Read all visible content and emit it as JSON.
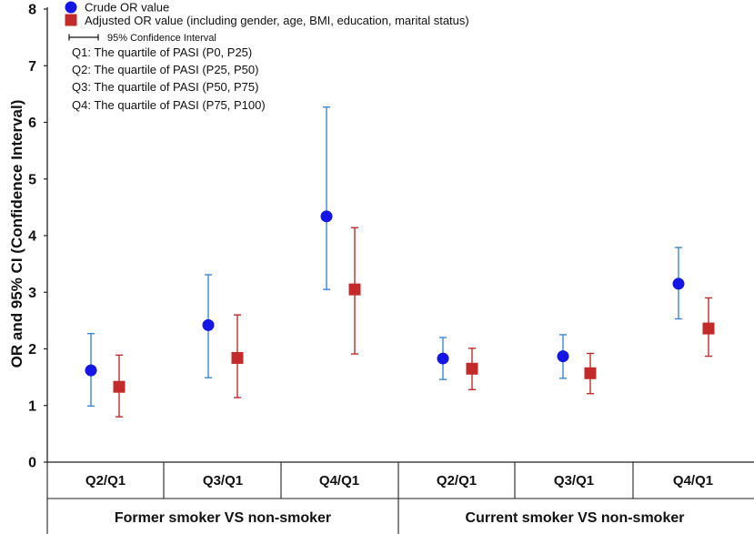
{
  "chart_data": {
    "type": "errorbar",
    "ylabel": "OR and 95% CI (Confidence Interval)",
    "ylim": [
      0,
      8
    ],
    "yticks": [
      "0",
      "1",
      "2",
      "3",
      "4",
      "5",
      "6",
      "7",
      "8"
    ],
    "groups": [
      "Former smoker VS non-smoker",
      "Current smoker VS non-smoker"
    ],
    "categories": [
      "Q2/Q1",
      "Q3/Q1",
      "Q4/Q1",
      "Q2/Q1",
      "Q3/Q1",
      "Q4/Q1"
    ],
    "series": [
      {
        "name": "Crude OR value",
        "marker": "circle",
        "color": "#1515e6",
        "bar_color": "#3d86d6",
        "values": [
          1.62,
          2.42,
          4.34,
          1.83,
          1.87,
          3.15
        ],
        "lower": [
          0.99,
          1.49,
          3.05,
          1.46,
          1.48,
          2.53
        ],
        "upper": [
          2.27,
          3.31,
          6.27,
          2.2,
          2.25,
          3.79
        ]
      },
      {
        "name": "Adjusted OR value (including gender, age, BMI, education, marital status)",
        "marker": "square",
        "color": "#c32a2a",
        "bar_color": "#c32a2a",
        "values": [
          1.33,
          1.84,
          3.05,
          1.65,
          1.57,
          2.36
        ],
        "lower": [
          0.8,
          1.14,
          1.91,
          1.28,
          1.21,
          1.87
        ],
        "upper": [
          1.89,
          2.6,
          4.14,
          2.01,
          1.92,
          2.9
        ]
      }
    ],
    "legend": {
      "ci_label": "95% Confidence Interval",
      "notes": [
        "Q1: The quartile of PASI (P0, P25)",
        "Q2: The quartile of PASI (P25, P50)",
        "Q3: The quartile of PASI (P50, P75)",
        "Q4: The quartile of PASI (P75, P100)"
      ]
    }
  }
}
